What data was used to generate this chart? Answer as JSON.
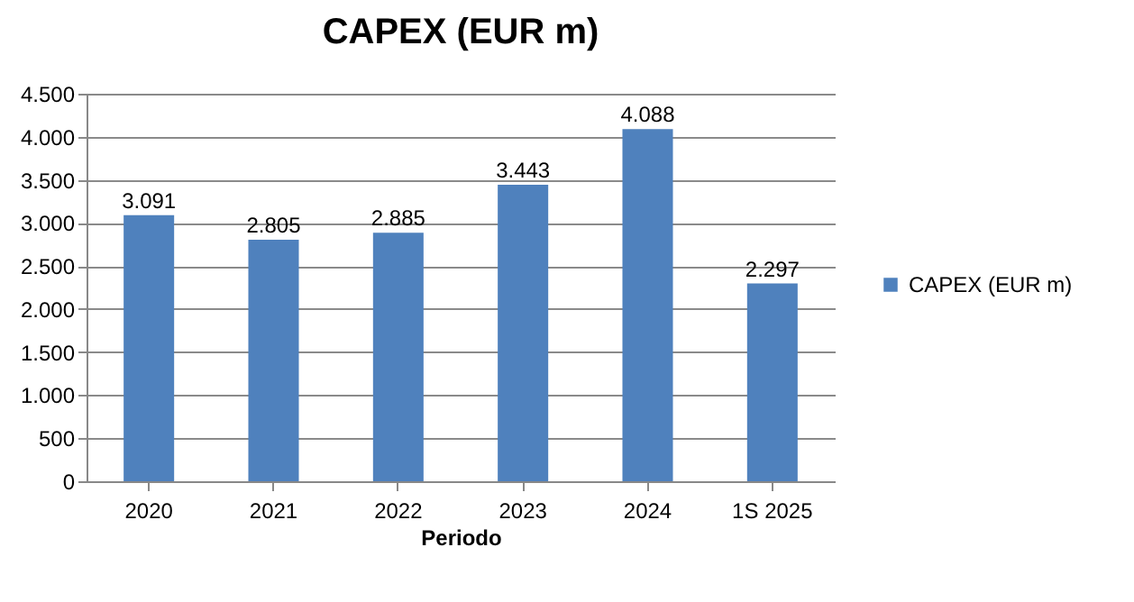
{
  "chart_data": {
    "type": "bar",
    "title": "CAPEX (EUR m)",
    "xlabel": "Periodo",
    "categories": [
      "2020",
      "2021",
      "2022",
      "2023",
      "2024",
      "1S 2025"
    ],
    "series": [
      {
        "name": "CAPEX (EUR m)",
        "color": "#4f81bd",
        "values": [
          3091,
          2805,
          2885,
          3443,
          4088,
          2297
        ],
        "value_labels": [
          "3.091",
          "2.805",
          "2.885",
          "3.443",
          "4.088",
          "2.297"
        ]
      }
    ],
    "ylim": [
      0,
      4500
    ],
    "yticks": [
      0,
      {
        "value": 500,
        "label": "500"
      },
      {
        "value": 1000,
        "label": "1.000"
      },
      {
        "value": 1500,
        "label": "1.500"
      },
      {
        "value": 2000,
        "label": "2.000"
      },
      {
        "value": 2500,
        "label": "2.500"
      },
      {
        "value": 3000,
        "label": "3.000"
      },
      {
        "value": 3500,
        "label": "3.500"
      },
      {
        "value": 4000,
        "label": "4.000"
      },
      {
        "value": 4500,
        "label": "4.500"
      }
    ],
    "grid": "y",
    "legend": "right"
  }
}
